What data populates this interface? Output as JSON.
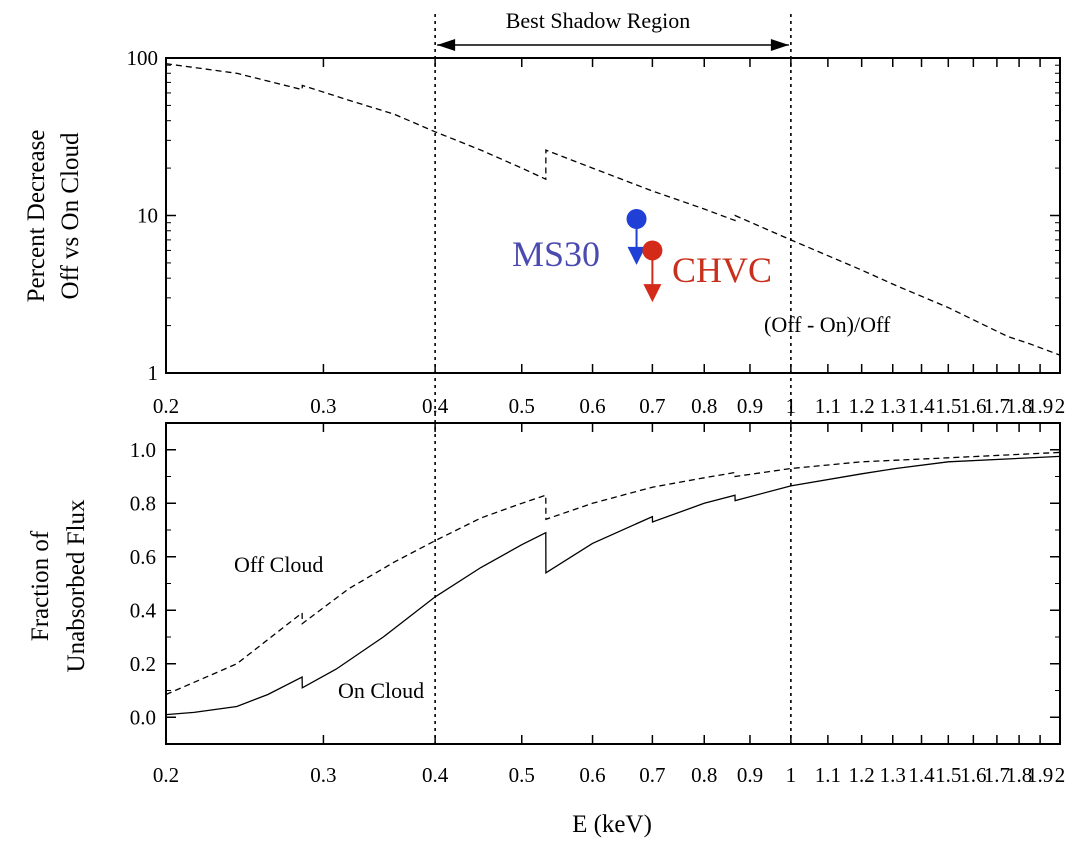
{
  "chart_data": [
    {
      "type": "line",
      "panel": "top",
      "ylabel_line1": "Percent Decrease",
      "ylabel_line2": "Off vs On Cloud",
      "xscale": "log",
      "yscale": "log",
      "xlim": [
        0.2,
        2
      ],
      "ylim": [
        1,
        100
      ],
      "y_ticks": [
        {
          "value": 1,
          "label": "1"
        },
        {
          "value": 10,
          "label": "10"
        },
        {
          "value": 100,
          "label": "100"
        }
      ],
      "x_ticks": [
        {
          "value": 0.2,
          "label": "0.2"
        },
        {
          "value": 0.3,
          "label": "0.3"
        },
        {
          "value": 0.4,
          "label": "0.4"
        },
        {
          "value": 0.5,
          "label": "0.5"
        },
        {
          "value": 0.6,
          "label": "0.6"
        },
        {
          "value": 0.7,
          "label": "0.7"
        },
        {
          "value": 0.8,
          "label": "0.8"
        },
        {
          "value": 0.9,
          "label": "0.9"
        },
        {
          "value": 1.0,
          "label": "1"
        },
        {
          "value": 1.1,
          "label": "1.1"
        },
        {
          "value": 1.2,
          "label": "1.2"
        },
        {
          "value": 1.3,
          "label": "1.3"
        },
        {
          "value": 1.4,
          "label": "1.4"
        },
        {
          "value": 1.5,
          "label": "1.5"
        },
        {
          "value": 1.6,
          "label": "1.6"
        },
        {
          "value": 1.7,
          "label": "1.7"
        },
        {
          "value": 1.8,
          "label": "1.8"
        },
        {
          "value": 1.9,
          "label": "1.9"
        },
        {
          "value": 2.0,
          "label": "2"
        }
      ],
      "series": [
        {
          "name": "(Off - On)/Off",
          "style": "dashed",
          "color": "#000000",
          "points": [
            [
              0.2,
              92
            ],
            [
              0.24,
              80
            ],
            [
              0.284,
              63
            ],
            [
              0.2841,
              67
            ],
            [
              0.32,
              54
            ],
            [
              0.36,
              44
            ],
            [
              0.4,
              34
            ],
            [
              0.45,
              26
            ],
            [
              0.5,
              20
            ],
            [
              0.532,
              17
            ],
            [
              0.5321,
              26
            ],
            [
              0.6,
              20
            ],
            [
              0.7,
              14.3
            ],
            [
              0.8,
              11
            ],
            [
              0.866,
              9.3
            ],
            [
              0.8661,
              10
            ],
            [
              1.0,
              7
            ],
            [
              1.2,
              4.5
            ],
            [
              1.31,
              3.6
            ],
            [
              1.5,
              2.6
            ],
            [
              1.75,
              1.7
            ],
            [
              1.84,
              1.55
            ],
            [
              2.0,
              1.3
            ]
          ]
        }
      ],
      "upper_limits": [
        {
          "name": "MS30",
          "x": 0.672,
          "y": 9.5,
          "arrow_to": 5.0,
          "color": "#1f3fd6",
          "label_color": "#4a4ab0"
        },
        {
          "name": "CHVC",
          "x": 0.7,
          "y": 6.0,
          "arrow_to": 2.9,
          "color": "#d42a1a",
          "label_color": "#c8301c"
        }
      ],
      "annotations": {
        "region_label": "Best Shadow Region",
        "region_range": [
          0.4,
          1.0
        ],
        "series_label": "(Off - On)/Off",
        "ms30_label": "MS30",
        "chvc_label": "CHVC"
      }
    },
    {
      "type": "line",
      "panel": "bottom",
      "ylabel_line1": "Fraction of",
      "ylabel_line2": "Unabsorbed Flux",
      "xlabel": "E (keV)",
      "xscale": "log",
      "xlim": [
        0.2,
        2
      ],
      "ylim": [
        -0.1,
        1.1
      ],
      "y_ticks": [
        {
          "value": 0.0,
          "label": "0.0"
        },
        {
          "value": 0.2,
          "label": "0.2"
        },
        {
          "value": 0.4,
          "label": "0.4"
        },
        {
          "value": 0.6,
          "label": "0.6"
        },
        {
          "value": 0.8,
          "label": "0.8"
        },
        {
          "value": 1.0,
          "label": "1.0"
        }
      ],
      "x_ticks": [
        {
          "value": 0.2,
          "label": "0.2"
        },
        {
          "value": 0.3,
          "label": "0.3"
        },
        {
          "value": 0.4,
          "label": "0.4"
        },
        {
          "value": 0.5,
          "label": "0.5"
        },
        {
          "value": 0.6,
          "label": "0.6"
        },
        {
          "value": 0.7,
          "label": "0.7"
        },
        {
          "value": 0.8,
          "label": "0.8"
        },
        {
          "value": 0.9,
          "label": "0.9"
        },
        {
          "value": 1.0,
          "label": "1"
        },
        {
          "value": 1.1,
          "label": "1.1"
        },
        {
          "value": 1.2,
          "label": "1.2"
        },
        {
          "value": 1.3,
          "label": "1.3"
        },
        {
          "value": 1.4,
          "label": "1.4"
        },
        {
          "value": 1.5,
          "label": "1.5"
        },
        {
          "value": 1.6,
          "label": "1.6"
        },
        {
          "value": 1.7,
          "label": "1.7"
        },
        {
          "value": 1.8,
          "label": "1.8"
        },
        {
          "value": 1.9,
          "label": "1.9"
        },
        {
          "value": 2.0,
          "label": "2"
        }
      ],
      "series": [
        {
          "name": "Off Cloud",
          "style": "dashed",
          "color": "#000000",
          "points": [
            [
              0.2,
              0.085
            ],
            [
              0.24,
              0.2
            ],
            [
              0.284,
              0.39
            ],
            [
              0.2841,
              0.35
            ],
            [
              0.32,
              0.48
            ],
            [
              0.36,
              0.58
            ],
            [
              0.4,
              0.66
            ],
            [
              0.45,
              0.745
            ],
            [
              0.5,
              0.8
            ],
            [
              0.532,
              0.83
            ],
            [
              0.5321,
              0.74
            ],
            [
              0.6,
              0.8
            ],
            [
              0.7,
              0.86
            ],
            [
              0.8,
              0.895
            ],
            [
              0.866,
              0.915
            ],
            [
              0.8661,
              0.9
            ],
            [
              1.0,
              0.93
            ],
            [
              1.2,
              0.955
            ],
            [
              1.5,
              0.97
            ],
            [
              2.0,
              0.99
            ]
          ]
        },
        {
          "name": "On Cloud",
          "style": "solid",
          "color": "#000000",
          "points": [
            [
              0.2,
              0.01
            ],
            [
              0.215,
              0.018
            ],
            [
              0.24,
              0.04
            ],
            [
              0.26,
              0.085
            ],
            [
              0.284,
              0.15
            ],
            [
              0.2841,
              0.11
            ],
            [
              0.31,
              0.18
            ],
            [
              0.35,
              0.3
            ],
            [
              0.4,
              0.45
            ],
            [
              0.45,
              0.56
            ],
            [
              0.5,
              0.645
            ],
            [
              0.532,
              0.69
            ],
            [
              0.5321,
              0.54
            ],
            [
              0.6,
              0.65
            ],
            [
              0.7,
              0.75
            ],
            [
              0.7001,
              0.73
            ],
            [
              0.8,
              0.8
            ],
            [
              0.866,
              0.83
            ],
            [
              0.8661,
              0.81
            ],
            [
              1.0,
              0.865
            ],
            [
              1.2,
              0.91
            ],
            [
              1.31,
              0.93
            ],
            [
              1.5,
              0.955
            ],
            [
              2.0,
              0.975
            ]
          ]
        }
      ],
      "annotations": {
        "off_cloud_label": "Off Cloud",
        "on_cloud_label": "On Cloud"
      }
    }
  ]
}
